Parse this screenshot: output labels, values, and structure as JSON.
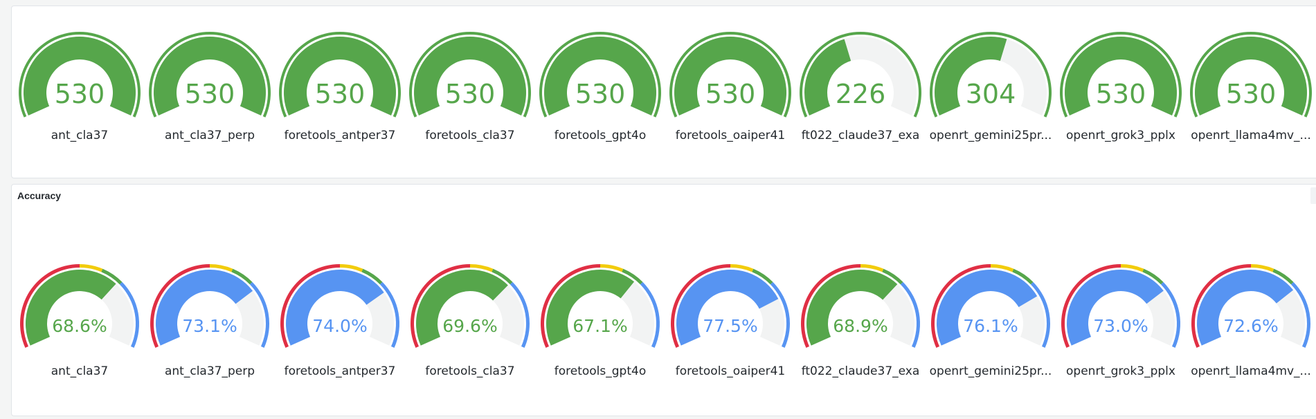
{
  "colors": {
    "green": "#56a64b",
    "blue": "#5794f2",
    "track": "#f2f3f3",
    "red": "#e02f44",
    "yellow": "#f2cc0c",
    "threshold_green": "#56a64b",
    "threshold_blue": "#5794f2"
  },
  "panels": {
    "accuracy": {
      "title": "Accuracy",
      "menu_icon": "vertical-ellipsis-icon"
    }
  },
  "chart_data": [
    {
      "type": "gauge",
      "max": 530,
      "show_threshold_ring": false,
      "labels": [
        "ant_cla37",
        "ant_cla37_perp",
        "foretools_antper37",
        "foretools_cla37",
        "foretools_gpt4o",
        "foretools_oaiper41",
        "ft022_claude37_exa",
        "openrt_gemini25pr...",
        "openrt_grok3_pplx",
        "openrt_llama4mv_..."
      ],
      "values": [
        530,
        530,
        530,
        530,
        530,
        530,
        226,
        304,
        530,
        530
      ],
      "display": [
        "530",
        "530",
        "530",
        "530",
        "530",
        "530",
        "226",
        "304",
        "530",
        "530"
      ],
      "colors": [
        "green",
        "green",
        "green",
        "green",
        "green",
        "green",
        "green",
        "green",
        "green",
        "green"
      ]
    },
    {
      "type": "gauge",
      "title": "Accuracy",
      "unit": "%",
      "min": 0,
      "max": 100,
      "show_threshold_ring": true,
      "thresholds": [
        {
          "from": 0,
          "to": 50,
          "color": "red"
        },
        {
          "from": 50,
          "to": 60,
          "color": "yellow"
        },
        {
          "from": 60,
          "to": 70,
          "color": "threshold_green"
        },
        {
          "from": 70,
          "to": 100,
          "color": "threshold_blue"
        }
      ],
      "labels": [
        "ant_cla37",
        "ant_cla37_perp",
        "foretools_antper37",
        "foretools_cla37",
        "foretools_gpt4o",
        "foretools_oaiper41",
        "ft022_claude37_exa",
        "openrt_gemini25pr...",
        "openrt_grok3_pplx",
        "openrt_llama4mv_..."
      ],
      "values": [
        68.6,
        73.1,
        74.0,
        69.6,
        67.1,
        77.5,
        68.9,
        76.1,
        73.0,
        72.6
      ],
      "display": [
        "68.6%",
        "73.1%",
        "74.0%",
        "69.6%",
        "67.1%",
        "77.5%",
        "68.9%",
        "76.1%",
        "73.0%",
        "72.6%"
      ],
      "colors": [
        "green",
        "blue",
        "blue",
        "green",
        "green",
        "blue",
        "green",
        "blue",
        "blue",
        "blue"
      ]
    }
  ]
}
